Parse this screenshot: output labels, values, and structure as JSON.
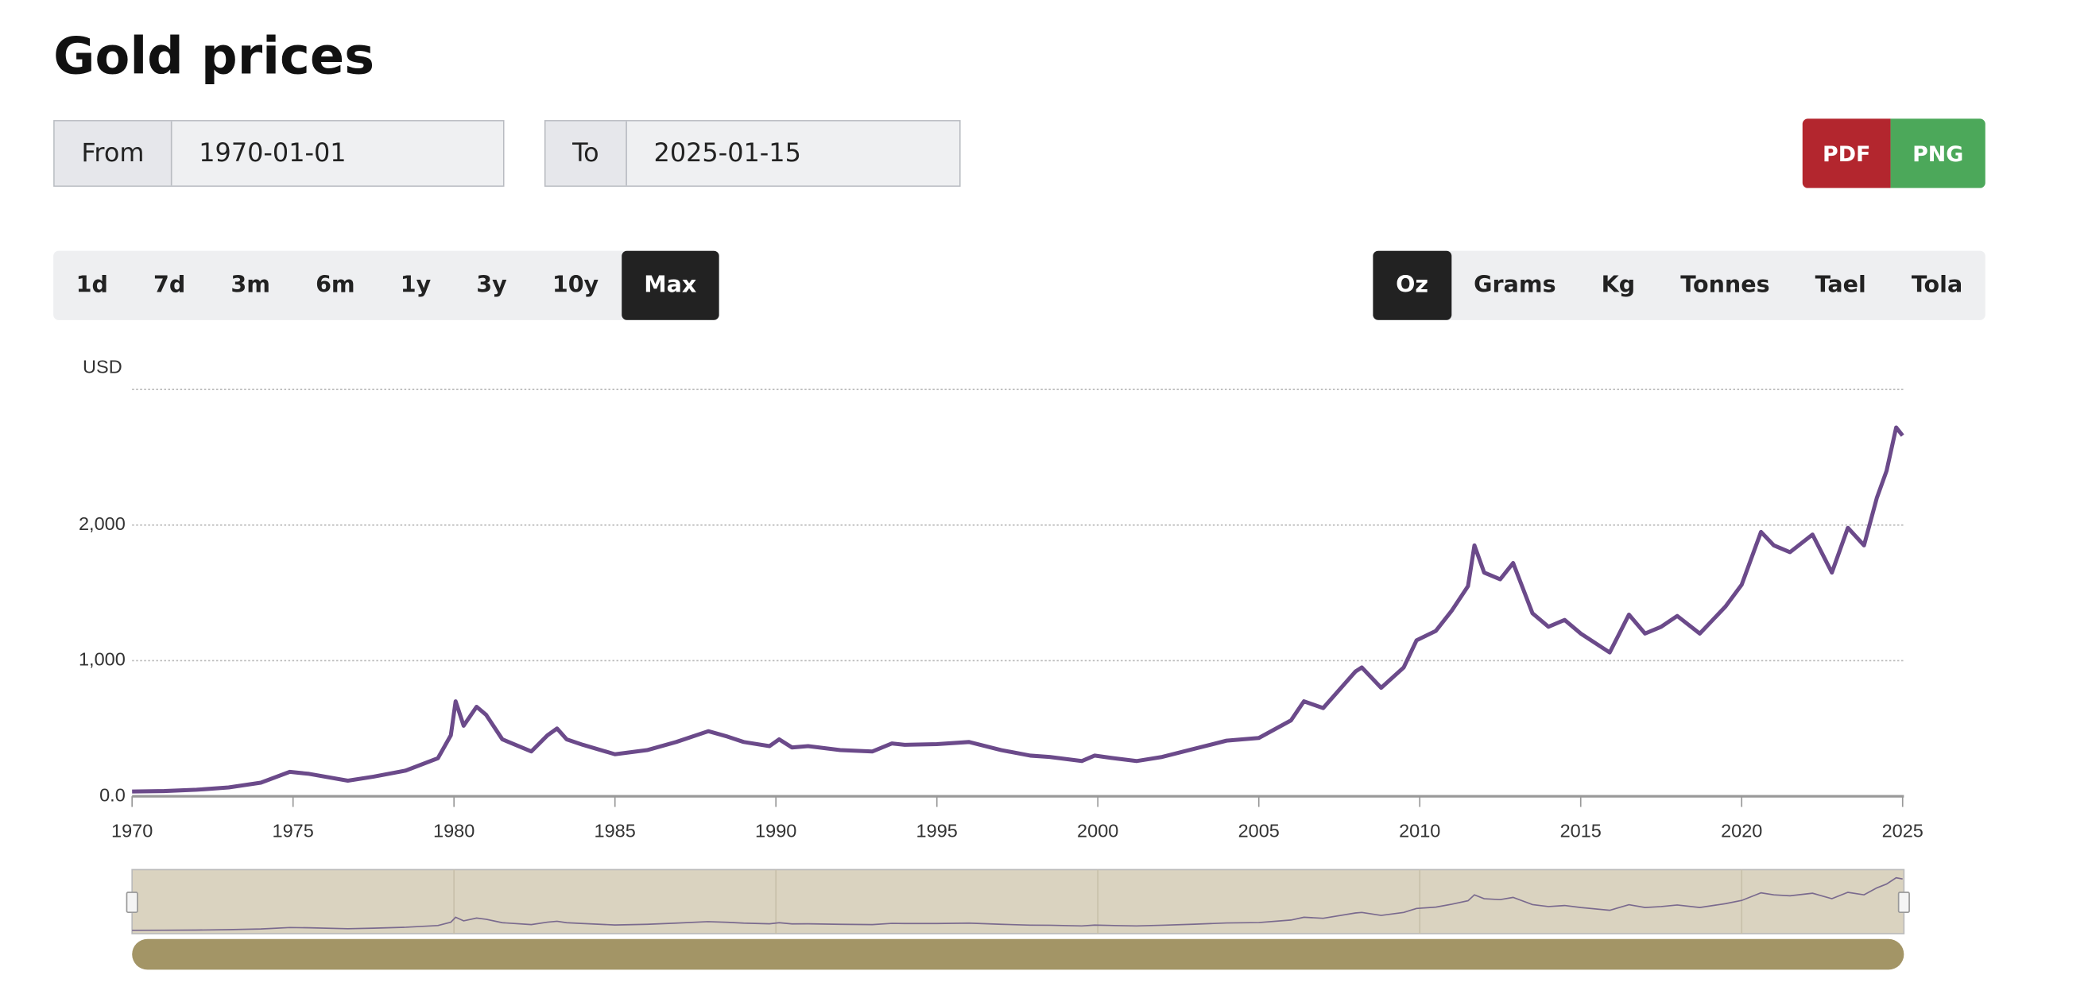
{
  "header": {
    "title": "Gold prices"
  },
  "date_range": {
    "from_label": "From",
    "from": "1970-01-01",
    "to_label": "To",
    "to": "2025-01-15"
  },
  "export": {
    "pdf": "PDF",
    "png": "PNG"
  },
  "periods": [
    "1d",
    "7d",
    "3m",
    "6m",
    "1y",
    "3y",
    "10y",
    "Max"
  ],
  "active_period": "Max",
  "units": [
    "Oz",
    "Grams",
    "Kg",
    "Tonnes",
    "Tael",
    "Tola"
  ],
  "active_unit": "Oz",
  "chart_data": {
    "type": "line",
    "y_label": "USD",
    "color": "#6b4a8a",
    "grid": true,
    "xlim": [
      1970,
      2025.04
    ],
    "ylim": [
      0,
      3000
    ],
    "xticks": [
      1970,
      1975,
      1980,
      1985,
      1990,
      1995,
      2000,
      2005,
      2010,
      2015,
      2020,
      2025
    ],
    "yticks": [
      {
        "value": 0,
        "label": "0.0"
      },
      {
        "value": 1000,
        "label": "1,000"
      },
      {
        "value": 2000,
        "label": "2,000"
      }
    ],
    "x": [
      1970,
      1971,
      1972,
      1973,
      1974,
      1974.9,
      1975.5,
      1976.7,
      1977.5,
      1978.5,
      1979.5,
      1979.9,
      1980.05,
      1980.3,
      1980.7,
      1981,
      1981.5,
      1982.4,
      1982.9,
      1983.2,
      1983.5,
      1984,
      1985,
      1986,
      1986.9,
      1987.9,
      1988.5,
      1989,
      1989.8,
      1990.1,
      1990.5,
      1991,
      1992,
      1993,
      1993.6,
      1994,
      1995,
      1996,
      1997,
      1997.9,
      1998.5,
      1999.5,
      1999.9,
      2000.5,
      2001.2,
      2002,
      2003,
      2004,
      2005,
      2006,
      2006.4,
      2007,
      2008,
      2008.2,
      2008.8,
      2009.5,
      2009.9,
      2010.5,
      2011,
      2011.5,
      2011.7,
      2012,
      2012.5,
      2012.9,
      2013.5,
      2014,
      2014.5,
      2015,
      2015.9,
      2016.5,
      2017,
      2017.5,
      2018,
      2018.7,
      2019.5,
      2020,
      2020.6,
      2021,
      2021.5,
      2022.2,
      2022.8,
      2023.3,
      2023.8,
      2024.2,
      2024.5,
      2024.8,
      2025
    ],
    "values": [
      35,
      38,
      48,
      65,
      100,
      180,
      165,
      115,
      145,
      190,
      280,
      450,
      700,
      520,
      660,
      600,
      420,
      330,
      450,
      500,
      420,
      380,
      310,
      340,
      400,
      480,
      440,
      400,
      370,
      420,
      360,
      370,
      340,
      330,
      390,
      380,
      385,
      400,
      340,
      300,
      290,
      260,
      300,
      280,
      260,
      290,
      350,
      410,
      430,
      560,
      700,
      650,
      920,
      950,
      800,
      950,
      1150,
      1220,
      1370,
      1550,
      1850,
      1650,
      1600,
      1720,
      1350,
      1250,
      1300,
      1200,
      1060,
      1340,
      1200,
      1250,
      1330,
      1200,
      1400,
      1560,
      1950,
      1850,
      1800,
      1930,
      1650,
      1980,
      1850,
      2200,
      2400,
      2720,
      2660
    ]
  }
}
